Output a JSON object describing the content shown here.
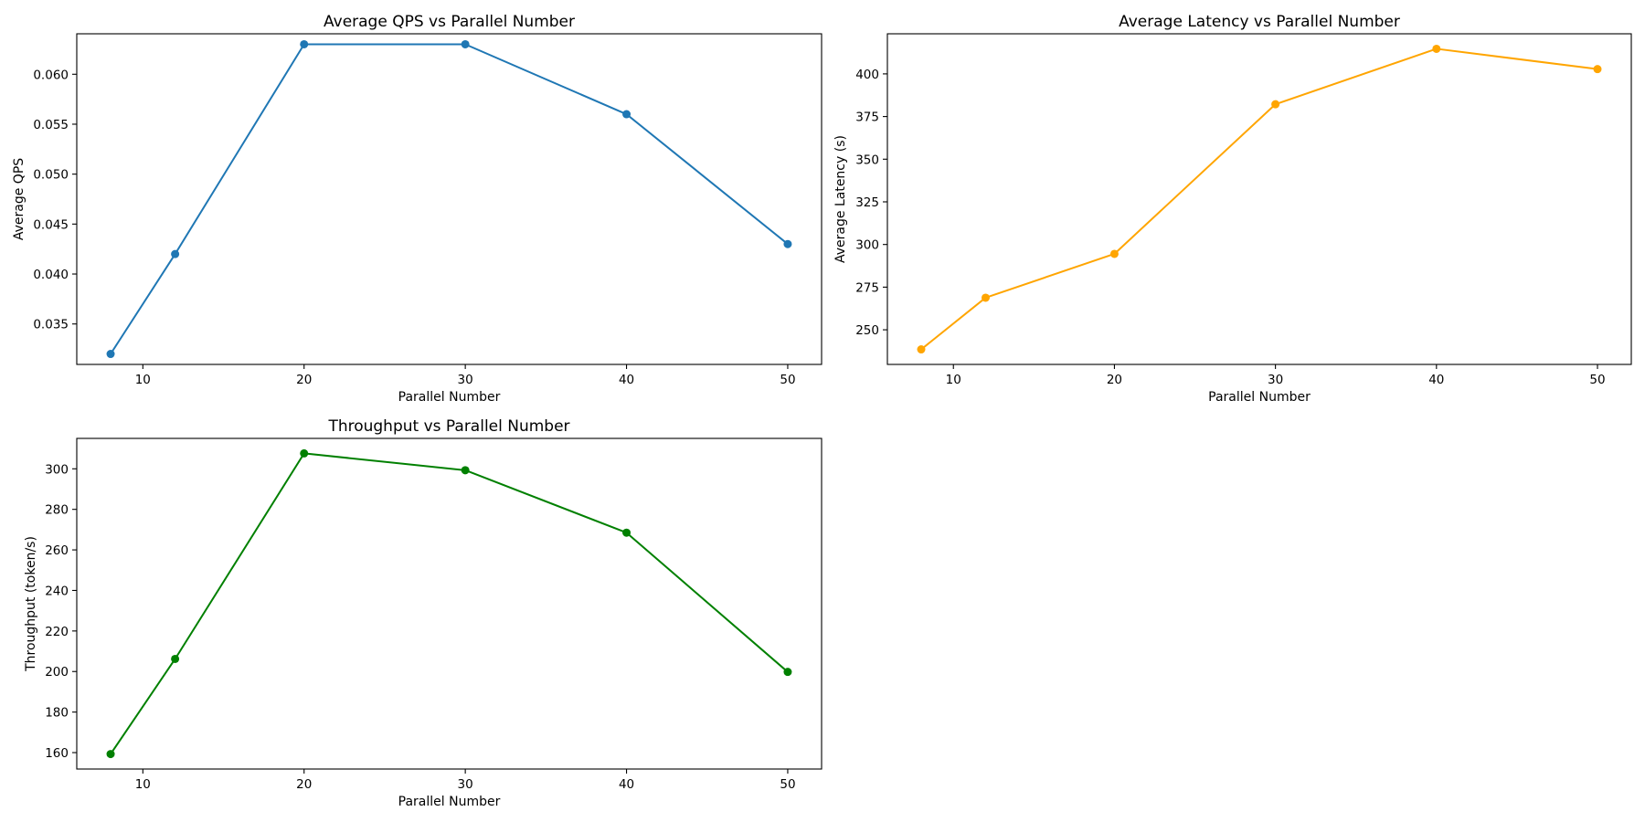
{
  "chart_data": [
    {
      "type": "line",
      "title": "Average QPS vs Parallel Number",
      "xlabel": "Parallel Number",
      "ylabel": "Average QPS",
      "x": [
        8,
        12,
        20,
        30,
        40,
        50
      ],
      "series": [
        {
          "values": [
            0.032,
            0.042,
            0.063,
            0.063,
            0.056,
            0.043
          ],
          "color": "#1f77b4"
        }
      ],
      "xlim": [
        5.9,
        52.1
      ],
      "ylim": [
        0.03095,
        0.06405
      ],
      "xticks": [
        10,
        20,
        30,
        40,
        50
      ],
      "yticks": [
        {
          "value": 0.035,
          "label": "0.035"
        },
        {
          "value": 0.04,
          "label": "0.040"
        },
        {
          "value": 0.045,
          "label": "0.045"
        },
        {
          "value": 0.05,
          "label": "0.050"
        },
        {
          "value": 0.055,
          "label": "0.055"
        },
        {
          "value": 0.06,
          "label": "0.060"
        }
      ],
      "marker": "circle",
      "grid": false
    },
    {
      "type": "line",
      "title": "Average Latency vs Parallel Number",
      "xlabel": "Parallel Number",
      "ylabel": "Average Latency (s)",
      "x": [
        8,
        12,
        20,
        30,
        40,
        50
      ],
      "series": [
        {
          "values": [
            238.5,
            268.8,
            294.5,
            382.2,
            414.7,
            402.8
          ],
          "color": "#ffa500"
        }
      ],
      "xlim": [
        5.9,
        52.1
      ],
      "ylim": [
        229.7,
        423.5
      ],
      "xticks": [
        10,
        20,
        30,
        40,
        50
      ],
      "yticks": [
        {
          "value": 250,
          "label": "250"
        },
        {
          "value": 275,
          "label": "275"
        },
        {
          "value": 300,
          "label": "300"
        },
        {
          "value": 325,
          "label": "325"
        },
        {
          "value": 350,
          "label": "350"
        },
        {
          "value": 375,
          "label": "375"
        },
        {
          "value": 400,
          "label": "400"
        }
      ],
      "marker": "circle",
      "grid": false
    },
    {
      "type": "line",
      "title": "Throughput vs Parallel Number",
      "xlabel": "Parallel Number",
      "ylabel": "Throughput (token/s)",
      "x": [
        8,
        12,
        20,
        30,
        40,
        50
      ],
      "series": [
        {
          "values": [
            159.3,
            206.2,
            307.6,
            299.3,
            268.5,
            199.8
          ],
          "color": "#008000"
        }
      ],
      "xlim": [
        5.9,
        52.1
      ],
      "ylim": [
        151.9,
        315.0
      ],
      "xticks": [
        10,
        20,
        30,
        40,
        50
      ],
      "yticks": [
        {
          "value": 160,
          "label": "160"
        },
        {
          "value": 180,
          "label": "180"
        },
        {
          "value": 200,
          "label": "200"
        },
        {
          "value": 220,
          "label": "220"
        },
        {
          "value": 240,
          "label": "240"
        },
        {
          "value": 260,
          "label": "260"
        },
        {
          "value": 280,
          "label": "280"
        },
        {
          "value": 300,
          "label": "300"
        }
      ],
      "marker": "circle",
      "grid": false
    }
  ]
}
